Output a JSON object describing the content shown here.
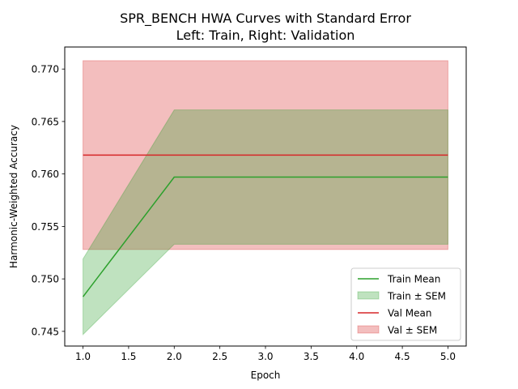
{
  "chart_data": {
    "type": "line",
    "title": "SPR_BENCH HWA Curves with Standard Error",
    "subtitle": "Left: Train, Right: Validation",
    "xlabel": "Epoch",
    "ylabel": "Harmonic-Weighted Accuracy",
    "xlim": [
      0.8,
      5.2
    ],
    "ylim": [
      0.7436,
      0.7721
    ],
    "xticks": [
      1.0,
      1.5,
      2.0,
      2.5,
      3.0,
      3.5,
      4.0,
      4.5,
      5.0
    ],
    "xtick_labels": [
      "1.0",
      "1.5",
      "2.0",
      "2.5",
      "3.0",
      "3.5",
      "4.0",
      "4.5",
      "5.0"
    ],
    "yticks": [
      0.745,
      0.75,
      0.755,
      0.76,
      0.765,
      0.77
    ],
    "ytick_labels": [
      "0.745",
      "0.750",
      "0.755",
      "0.760",
      "0.765",
      "0.770"
    ],
    "grid": false,
    "legend_position": "lower-right",
    "x": [
      1,
      2,
      3,
      4,
      5
    ],
    "series": [
      {
        "name": "Train Mean",
        "band_name": "Train ± SEM",
        "color": "#2ca02c",
        "values": [
          0.7483,
          0.7597,
          0.7597,
          0.7597,
          0.7597
        ],
        "lower": [
          0.7447,
          0.7533,
          0.7533,
          0.7533,
          0.7533
        ],
        "upper": [
          0.7519,
          0.7661,
          0.7661,
          0.7661,
          0.7661
        ]
      },
      {
        "name": "Val Mean",
        "band_name": "Val ± SEM",
        "color": "#d62728",
        "values": [
          0.7618,
          0.7618,
          0.7618,
          0.7618,
          0.7618
        ],
        "lower": [
          0.7528,
          0.7528,
          0.7528,
          0.7528,
          0.7528
        ],
        "upper": [
          0.7708,
          0.7708,
          0.7708,
          0.7708,
          0.7708
        ]
      }
    ]
  }
}
